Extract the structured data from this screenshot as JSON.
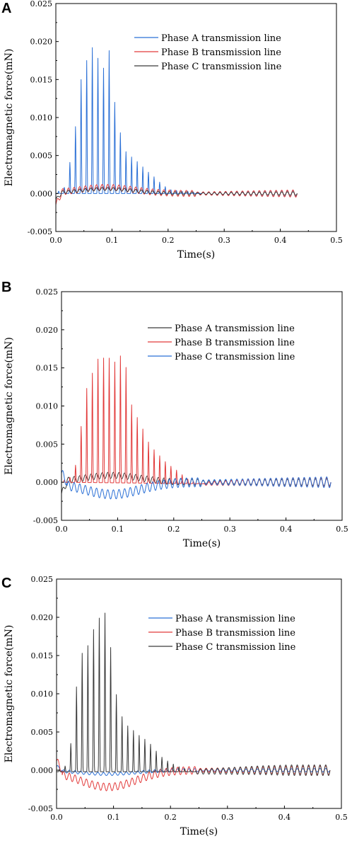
{
  "colors": {
    "blue": "#2b70d6",
    "red": "#e23a3a",
    "black": "#3a3a3a"
  },
  "chart_data": [
    {
      "panel": "A",
      "type": "line",
      "xlabel": "Time(s)",
      "ylabel": "Electromagnetic force(mN)",
      "xlim": [
        0.0,
        0.5
      ],
      "ylim": [
        -0.005,
        0.025
      ],
      "xticks": [
        "0.0",
        "0.1",
        "0.2",
        "0.3",
        "0.4",
        "0.5"
      ],
      "yticks": [
        "-0.005",
        "0.000",
        "0.005",
        "0.010",
        "0.015",
        "0.020",
        "0.025"
      ],
      "grid": false,
      "legend": "top-right",
      "series": [
        {
          "name": "Phase A transmission line",
          "color": "#2b70d6",
          "peaks": [
            [
              0.005,
              0.0003
            ],
            [
              0.015,
              0.0008
            ],
            [
              0.025,
              0.0041
            ],
            [
              0.035,
              0.0088
            ],
            [
              0.045,
              0.015
            ],
            [
              0.055,
              0.0175
            ],
            [
              0.065,
              0.0192
            ],
            [
              0.075,
              0.0178
            ],
            [
              0.085,
              0.0165
            ],
            [
              0.095,
              0.0188
            ],
            [
              0.105,
              0.012
            ],
            [
              0.115,
              0.008
            ],
            [
              0.125,
              0.0055
            ],
            [
              0.135,
              0.0048
            ],
            [
              0.145,
              0.0042
            ],
            [
              0.155,
              0.0035
            ],
            [
              0.165,
              0.0028
            ],
            [
              0.175,
              0.0022
            ],
            [
              0.185,
              0.0015
            ],
            [
              0.195,
              0.0009
            ],
            [
              0.205,
              0.0005
            ],
            [
              0.215,
              0.0004
            ],
            [
              0.225,
              0.0003
            ],
            [
              0.235,
              0.0003
            ],
            [
              0.245,
              0.0002
            ],
            [
              0.255,
              0.0001
            ]
          ],
          "mid_start": 0.0,
          "mid_end": 0.0,
          "tail_amp_start": 0.0001,
          "tail_amp_end": 0.0004,
          "x_end": 0.43
        },
        {
          "name": "Phase B transmission line",
          "color": "#e23a3a",
          "start_value": -0.0015,
          "hump": 0.0008,
          "osc_amp": 0.0004,
          "x_end": 0.43
        },
        {
          "name": "Phase C transmission line",
          "color": "#3a3a3a",
          "start_value": -0.0008,
          "hump": 0.0006,
          "osc_amp": 0.0002,
          "x_end": 0.43
        }
      ]
    },
    {
      "panel": "B",
      "type": "line",
      "xlabel": "Time(s)",
      "ylabel": "Electromagnetic force(mN)",
      "xlim": [
        0.0,
        0.5
      ],
      "ylim": [
        -0.005,
        0.025
      ],
      "xticks": [
        "0.0",
        "0.1",
        "0.2",
        "0.3",
        "0.4",
        "0.5"
      ],
      "yticks": [
        "-0.005",
        "0.000",
        "0.005",
        "0.010",
        "0.015",
        "0.020",
        "0.025"
      ],
      "grid": false,
      "legend": "top-right",
      "series": [
        {
          "name": "Phase A transmission line",
          "color": "#3a3a3a",
          "start_value": -0.0015,
          "hump": 0.0009,
          "osc_amp": 0.0004,
          "x_end": 0.48
        },
        {
          "name": "Phase B transmission line",
          "color": "#e23a3a",
          "peaks": [
            [
              0.01,
              0.0003
            ],
            [
              0.02,
              0.001
            ],
            [
              0.03,
              0.0035
            ],
            [
              0.04,
              0.0112
            ],
            [
              0.05,
              0.0135
            ],
            [
              0.06,
              0.0152
            ],
            [
              0.07,
              0.0172
            ],
            [
              0.08,
              0.0155
            ],
            [
              0.09,
              0.0172
            ],
            [
              0.1,
              0.0145
            ],
            [
              0.11,
              0.0188
            ],
            [
              0.12,
              0.0115
            ],
            [
              0.13,
              0.009
            ],
            [
              0.14,
              0.0082
            ],
            [
              0.15,
              0.006
            ],
            [
              0.16,
              0.0048
            ],
            [
              0.17,
              0.004
            ],
            [
              0.18,
              0.0032
            ],
            [
              0.19,
              0.0025
            ],
            [
              0.2,
              0.002
            ],
            [
              0.21,
              0.0015
            ],
            [
              0.22,
              0.0008
            ],
            [
              0.23,
              0.0004
            ],
            [
              0.24,
              0.0002
            ],
            [
              0.25,
              0.0001
            ]
          ],
          "mid_start": 0.0,
          "mid_end": -0.0002,
          "tail_amp_start": 0.0002,
          "tail_amp_end": 0.0006,
          "x_end": 0.48
        },
        {
          "name": "Phase C transmission line",
          "color": "#2b70d6",
          "start_value": 0.0012,
          "dip": -0.0016,
          "osc_amp": 0.0006,
          "x_end": 0.48
        }
      ]
    },
    {
      "panel": "C",
      "type": "line",
      "xlabel": "Time(s)",
      "ylabel": "Electromagnetic force(mN)",
      "xlim": [
        0.0,
        0.5
      ],
      "ylim": [
        -0.005,
        0.025
      ],
      "xticks": [
        "0.0",
        "0.1",
        "0.2",
        "0.3",
        "0.4",
        "0.5"
      ],
      "yticks": [
        "-0.005",
        "0.000",
        "0.005",
        "0.010",
        "0.015",
        "0.020",
        "0.025"
      ],
      "grid": false,
      "legend": "top-right",
      "series": [
        {
          "name": "Phase A transmission line",
          "color": "#2b70d6",
          "start_value": 0.0005,
          "dip": -0.0005,
          "osc_amp": 0.0002,
          "x_end": 0.48
        },
        {
          "name": "Phase B transmission line",
          "color": "#e23a3a",
          "start_value": 0.0012,
          "dip": -0.0022,
          "osc_amp": 0.0005,
          "x_end": 0.48
        },
        {
          "name": "Phase C transmission line",
          "color": "#3a3a3a",
          "peaks": [
            [
              0.01,
              0.0003
            ],
            [
              0.02,
              0.0012
            ],
            [
              0.03,
              0.0062
            ],
            [
              0.04,
              0.016
            ],
            [
              0.05,
              0.015
            ],
            [
              0.06,
              0.018
            ],
            [
              0.07,
              0.0192
            ],
            [
              0.08,
              0.021
            ],
            [
              0.09,
              0.0205
            ],
            [
              0.1,
              0.012
            ],
            [
              0.11,
              0.0082
            ],
            [
              0.12,
              0.0062
            ],
            [
              0.13,
              0.0058
            ],
            [
              0.14,
              0.005
            ],
            [
              0.15,
              0.0045
            ],
            [
              0.16,
              0.004
            ],
            [
              0.17,
              0.0032
            ],
            [
              0.18,
              0.0022
            ],
            [
              0.19,
              0.0016
            ],
            [
              0.2,
              0.0012
            ],
            [
              0.21,
              0.0008
            ],
            [
              0.22,
              0.0005
            ],
            [
              0.23,
              0.0003
            ],
            [
              0.24,
              0.0002
            ]
          ],
          "mid_start": -0.0002,
          "mid_end": -0.0002,
          "tail_amp_start": 0.0003,
          "tail_amp_end": 0.0007,
          "x_end": 0.48
        }
      ]
    }
  ]
}
